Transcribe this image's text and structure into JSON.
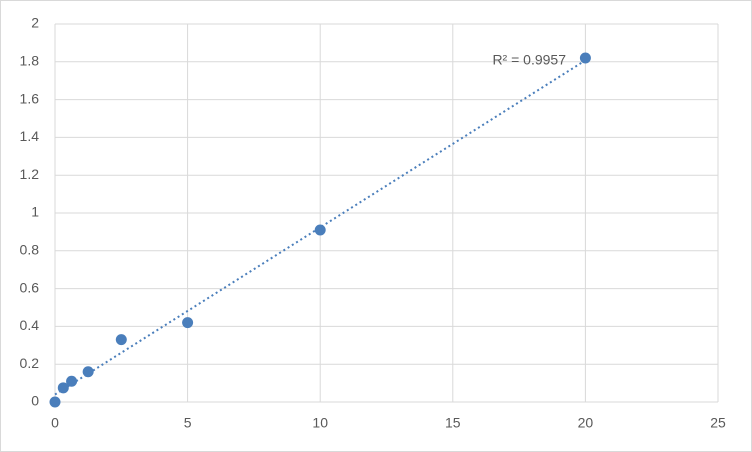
{
  "chart_data": {
    "type": "scatter",
    "x": [
      0,
      0.3125,
      0.625,
      1.25,
      2.5,
      5,
      10,
      20
    ],
    "values": [
      0,
      0.075,
      0.11,
      0.16,
      0.33,
      0.42,
      0.91,
      1.82
    ],
    "color": "#4a7ebb",
    "trendline": "linear",
    "annotation": "R² = 0.9957",
    "xlim": [
      0,
      25
    ],
    "xticks": [
      0,
      5,
      10,
      15,
      20,
      25
    ],
    "ylim": [
      0,
      2
    ],
    "yticks": [
      0,
      0.2,
      0.4,
      0.6,
      0.8,
      1,
      1.2,
      1.4,
      1.6,
      1.8,
      2
    ],
    "grid": true
  }
}
